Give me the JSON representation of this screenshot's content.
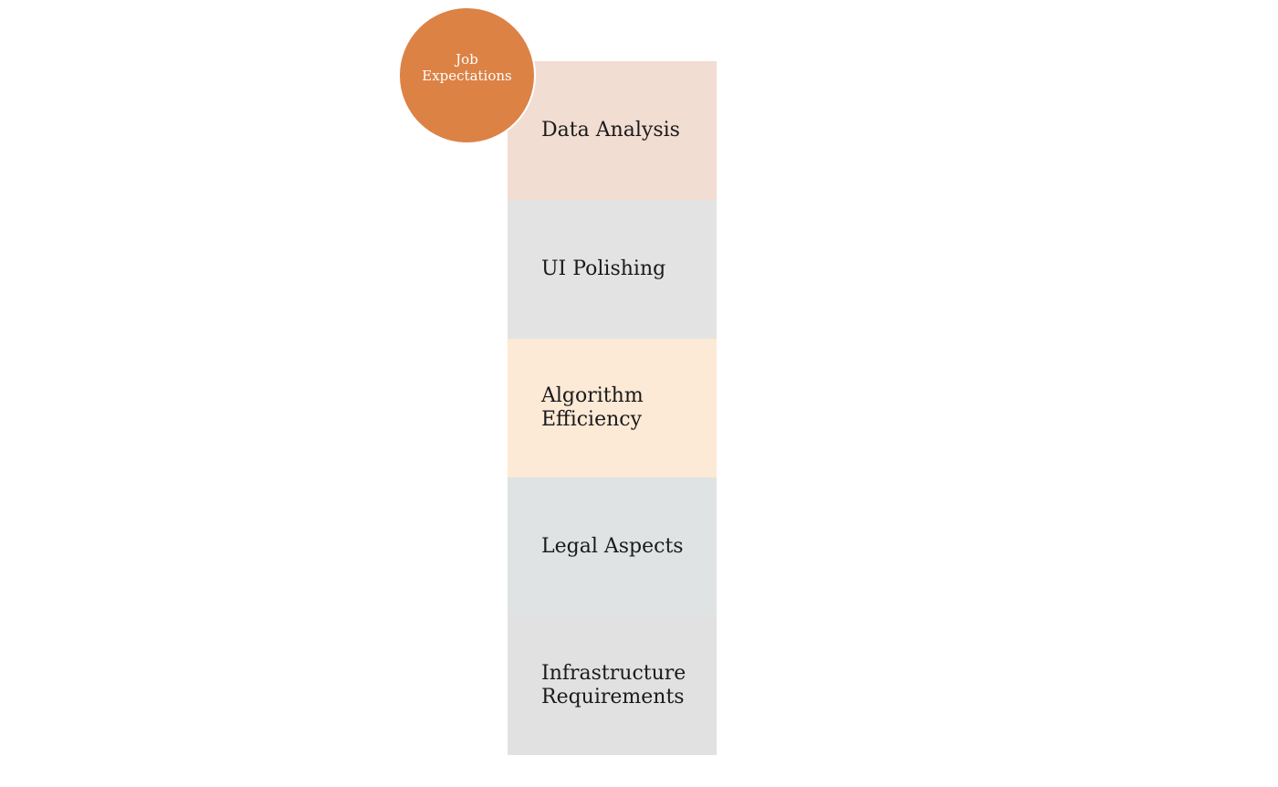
{
  "badge": {
    "label": "Job\nExpectations",
    "color": "#dc8245"
  },
  "blocks": [
    {
      "label": "Data Analysis",
      "color": "#f2ddd2"
    },
    {
      "label": "UI Polishing",
      "color": "#e3e3e3"
    },
    {
      "label": "Algorithm\nEfficiency",
      "color": "#fce9d6"
    },
    {
      "label": "Legal Aspects",
      "color": "#dfe3e3"
    },
    {
      "label": " Infrastructure\nRequirements",
      "color": "#e1e1e1"
    }
  ]
}
